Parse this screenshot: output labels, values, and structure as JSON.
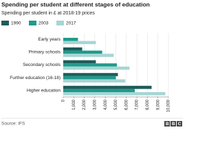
{
  "chart_data": {
    "type": "bar",
    "orientation": "horizontal",
    "title": "Spending per student at different stages of education",
    "subtitle": "Spending per student in £ at 2018-19 prices",
    "categories": [
      "Early years",
      "Primary schools",
      "Secondary schools",
      "Further education (16-18)",
      "Higher education"
    ],
    "series": [
      {
        "name": "1990",
        "color": "#1e5c5b",
        "values": [
          null,
          1800,
          3100,
          5200,
          8400
        ]
      },
      {
        "name": "2003",
        "color": "#1f9a8c",
        "values": [
          1400,
          3700,
          5100,
          5000,
          6800
        ]
      },
      {
        "name": "2017",
        "color": "#a5d6d4",
        "values": [
          3100,
          4800,
          6300,
          5900,
          9700
        ]
      }
    ],
    "xlim": [
      0,
      10000
    ],
    "xticks": [
      0,
      {
        "value": 1000,
        "label": "1,000"
      },
      {
        "value": 2000,
        "label": "2,000"
      },
      {
        "value": 3000,
        "label": "3,000"
      },
      {
        "value": 4000,
        "label": "4,000"
      },
      {
        "value": 5000,
        "label": "5,000"
      },
      {
        "value": 6000,
        "label": "6,000"
      },
      {
        "value": 7000,
        "label": "7,000"
      },
      {
        "value": 8000,
        "label": "8,000"
      },
      {
        "value": 9000,
        "label": "9,000"
      },
      {
        "value": 10000,
        "label": "10,000"
      }
    ],
    "grid": true,
    "legend": "top-left",
    "source": "Source: IFS",
    "logo": "BBC"
  }
}
